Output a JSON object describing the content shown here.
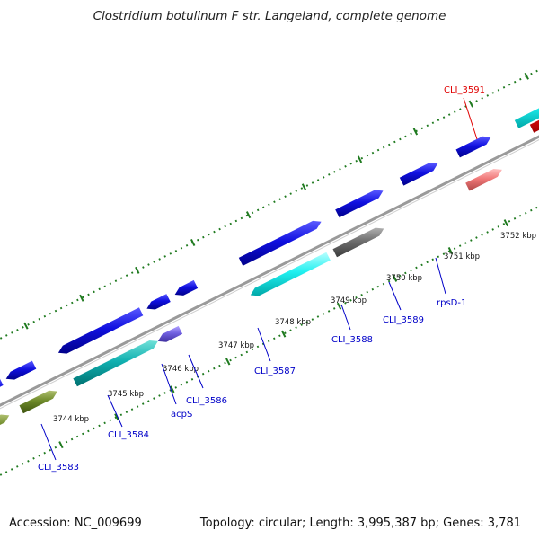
{
  "title": "Clostridium botulinum F str. Langeland, complete genome",
  "footer": {
    "accession": "Accession: NC_009699",
    "info": "Topology: circular; Length: 3,995,387 bp; Genes: 3,781"
  },
  "colors": {
    "backbone": "#8c8c8c",
    "tick": "#1f7a1f",
    "kbp_label": "#111111",
    "gene_label_blue": "#0000c8",
    "gene_label_red": "#e00000"
  },
  "kbp_labels": [
    "3744 kbp",
    "3745 kbp",
    "3746 kbp",
    "3747 kbp",
    "3748 kbp",
    "3749 kbp",
    "3750 kbp",
    "3751 kbp",
    "3752 kbp"
  ],
  "genes": [
    {
      "id": "CLI_3583",
      "label": "CLI_3583",
      "color": "blue"
    },
    {
      "id": "CLI_3584",
      "label": "CLI_3584",
      "color": "blue"
    },
    {
      "id": "acpS",
      "label": "acpS",
      "color": "blue"
    },
    {
      "id": "CLI_3586",
      "label": "CLI_3586",
      "color": "blue"
    },
    {
      "id": "CLI_3587",
      "label": "CLI_3587",
      "color": "blue"
    },
    {
      "id": "CLI_3588",
      "label": "CLI_3588",
      "color": "blue"
    },
    {
      "id": "CLI_3589",
      "label": "CLI_3589",
      "color": "blue"
    },
    {
      "id": "rpsD-1",
      "label": "rpsD-1",
      "color": "blue"
    },
    {
      "id": "CLI_3591",
      "label": "CLI_3591",
      "color": "red"
    }
  ]
}
